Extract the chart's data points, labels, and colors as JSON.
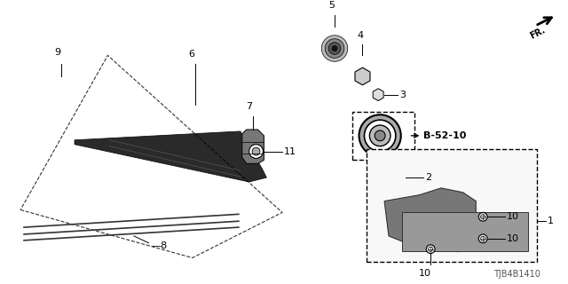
{
  "title": "",
  "diagram_code": "TJB4B1410",
  "background_color": "#ffffff",
  "line_color": "#000000",
  "b52_label": "B-52-10",
  "fr_text": "FR."
}
